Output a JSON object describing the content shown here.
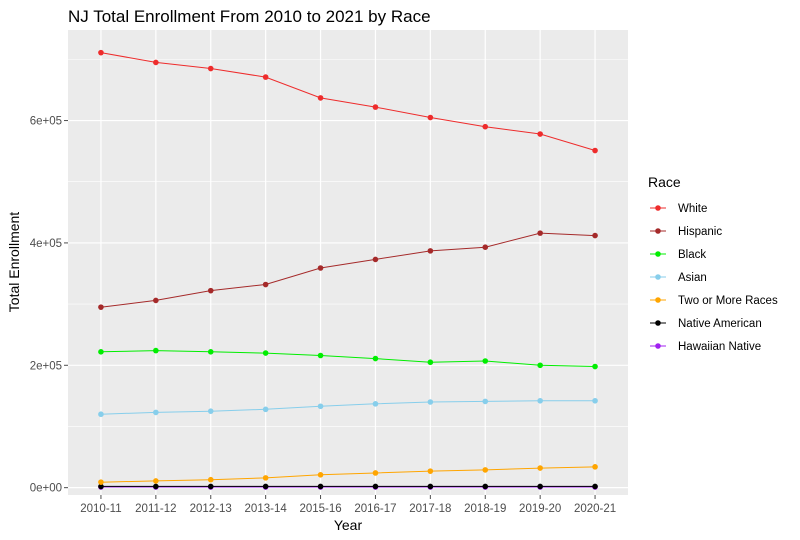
{
  "chart_data": {
    "type": "line",
    "title": "NJ Total Enrollment From 2010 to 2021 by Race",
    "xlabel": "Year",
    "ylabel": "Total Enrollment",
    "categories": [
      "2010-11",
      "2011-12",
      "2012-13",
      "2013-14",
      "2015-16",
      "2016-17",
      "2017-18",
      "2018-19",
      "2019-20",
      "2020-21"
    ],
    "ylim": [
      -12000,
      748000
    ],
    "yticks": [
      0,
      200000,
      400000,
      600000
    ],
    "ytick_labels": [
      "0e+00",
      "2e+05",
      "4e+05",
      "6e+05"
    ],
    "grid": true,
    "legend_title": "Race",
    "legend_position": "right",
    "series": [
      {
        "name": "White",
        "color": "#ee2c2c",
        "values": [
          711000,
          695000,
          685000,
          671000,
          637000,
          622000,
          605000,
          590000,
          578000,
          551000
        ]
      },
      {
        "name": "Hispanic",
        "color": "#a52a2a",
        "values": [
          295000,
          306000,
          322000,
          332000,
          359000,
          373000,
          387000,
          393000,
          416000,
          412000
        ]
      },
      {
        "name": "Black",
        "color": "#00ee00",
        "values": [
          222000,
          224000,
          222000,
          220000,
          216000,
          211000,
          205000,
          207000,
          200000,
          198000
        ]
      },
      {
        "name": "Asian",
        "color": "#87ceeb",
        "values": [
          120000,
          123000,
          125000,
          128000,
          133000,
          137000,
          140000,
          141000,
          142000,
          142000
        ]
      },
      {
        "name": "Two or More Races",
        "color": "#ffa500",
        "values": [
          9000,
          11000,
          13000,
          16000,
          21000,
          24000,
          27000,
          29000,
          32000,
          34000
        ]
      },
      {
        "name": "Native American",
        "color": "#000000",
        "values": [
          2000,
          2000,
          2000,
          2000,
          2000,
          2000,
          2000,
          2000,
          2000,
          2000
        ]
      },
      {
        "name": "Hawaiian Native",
        "color": "#a020f0",
        "values": [
          1000,
          1000,
          1000,
          1000,
          1000,
          1000,
          1000,
          1000,
          1000,
          1000
        ]
      }
    ]
  }
}
